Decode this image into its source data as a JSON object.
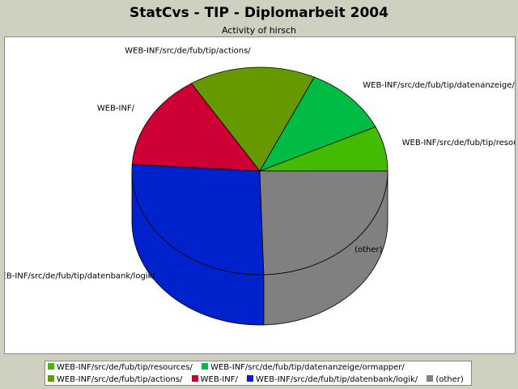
{
  "header": {
    "title": "StatCvs - TIP - Diplomarbeit 2004",
    "subtitle": "Activity of hirsch"
  },
  "chart_data": {
    "type": "pie",
    "title": "StatCvs - TIP - Diplomarbeit 2004",
    "subtitle": "Activity of hirsch",
    "slices": [
      {
        "label": "WEB-INF/src/de/fub/tip/resources/",
        "value": 7.0,
        "color": "#44bb00"
      },
      {
        "label": "WEB-INF/src/de/fub/tip/datenanzeige/ormapper/",
        "value": 11.0,
        "color": "#00bb44"
      },
      {
        "label": "WEB-INF/src/de/fub/tip/actions/",
        "value": 16.0,
        "color": "#669900"
      },
      {
        "label": "WEB-INF/",
        "value": 15.0,
        "color": "#cc0033"
      },
      {
        "label": "WEB-INF/src/de/fub/tip/datenbank/logik/",
        "value": 26.5,
        "color": "#0022cc"
      },
      {
        "label": "(other)",
        "value": 24.5,
        "color": "#808080"
      }
    ],
    "legend_position": "bottom"
  }
}
